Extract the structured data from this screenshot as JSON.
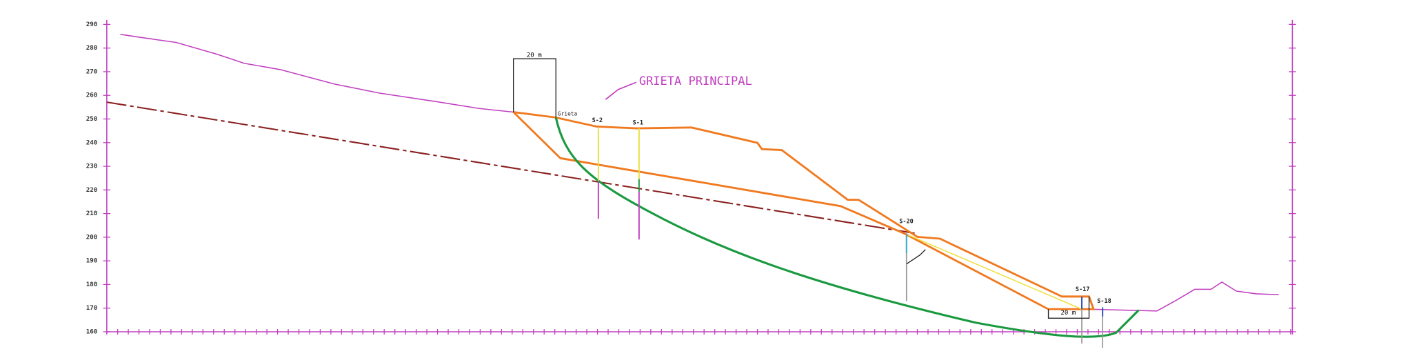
{
  "axis": {
    "ticks": [
      160,
      170,
      180,
      190,
      200,
      210,
      220,
      230,
      240,
      250,
      260,
      270,
      280,
      290
    ]
  },
  "labels": {
    "main_crack": "GRIETA PRINCIPAL",
    "crack": "Grieta",
    "top_dimension": "20 m",
    "bottom_dimension": "20 m"
  },
  "boreholes": [
    "S-2",
    "S-1",
    "S-20",
    "S-17",
    "S-18"
  ]
}
